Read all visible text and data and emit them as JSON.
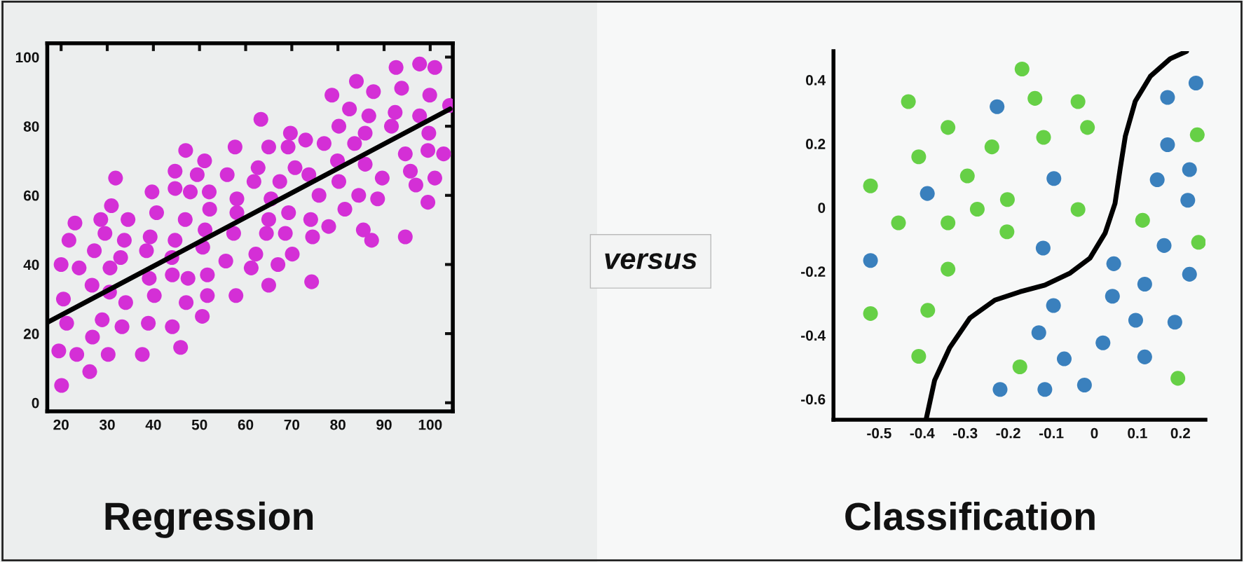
{
  "chart_data": [
    {
      "type": "scatter",
      "title": "Regression",
      "marker": "circle",
      "annotations": [
        "versus"
      ],
      "xlim": [
        17,
        104.9
      ],
      "ylim": [
        -2.5,
        104
      ],
      "xticks": [
        20,
        30,
        40,
        50,
        60,
        70,
        80,
        90,
        100
      ],
      "yticks": [
        0,
        20,
        40,
        60,
        80,
        100
      ],
      "series": [
        {
          "color": "#d42fd6",
          "x": [
            20.0,
            20.5,
            19.5,
            20.1,
            21.2,
            21.7,
            23.0,
            23.9,
            23.4,
            26.7,
            27.2,
            26.8,
            26.2,
            28.6,
            29.5,
            28.9,
            30.2,
            30.6,
            30.5,
            30.9,
            31.8,
            32.9,
            33.7,
            34.5,
            34.0,
            33.2,
            37.6,
            38.5,
            39.3,
            39.1,
            39.7,
            40.7,
            40.2,
            38.9,
            44.7,
            44.7,
            44.7,
            44.0,
            44.1,
            44.1,
            45.9,
            47.0,
            46.9,
            48.0,
            47.5,
            47.1,
            49.5,
            51.1,
            52.1,
            52.2,
            51.2,
            50.7,
            51.7,
            51.7,
            50.6,
            56.0,
            57.7,
            58.1,
            58.1,
            57.4,
            55.7,
            57.9,
            63.3,
            62.7,
            61.8,
            65.0,
            69.2,
            69.7,
            73.0,
            77.0,
            67.4,
            70.7,
            73.7,
            65.5,
            65.0,
            64.5,
            62.2,
            61.2,
            65.0,
            67.0,
            68.6,
            69.3,
            70.1,
            74.1,
            74.5,
            74.3,
            75.9,
            78.0,
            78.7,
            80.2,
            79.9,
            80.2,
            81.5,
            82.5,
            84.0,
            83.6,
            85.9,
            86.7,
            85.9,
            84.5,
            85.5,
            87.3,
            87.7,
            88.6,
            89.6,
            91.6,
            92.4,
            92.6,
            93.8,
            94.6,
            95.7,
            96.9,
            94.6,
            97.7,
            101.0,
            99.9,
            97.7,
            99.7,
            99.5,
            101.0,
            102.9,
            99.5,
            104.2
          ],
          "values": [
            40,
            30,
            15,
            5,
            23,
            47,
            52,
            39,
            14,
            34,
            44,
            19,
            9,
            53,
            49,
            24,
            14,
            39,
            32,
            57,
            65,
            42,
            47,
            53,
            29,
            22,
            14,
            44,
            48,
            36,
            61,
            55,
            31,
            23,
            67,
            62,
            47,
            42,
            37,
            22,
            16,
            73,
            53,
            61,
            36,
            29,
            66,
            70,
            61,
            56,
            50,
            45,
            37,
            31,
            25,
            66,
            74,
            59,
            55,
            49,
            41,
            31,
            82,
            68,
            64,
            74,
            74,
            78,
            76,
            75,
            64,
            68,
            66,
            59,
            53,
            49,
            43,
            39,
            34,
            40,
            49,
            55,
            43,
            53,
            48,
            35,
            60,
            51,
            89,
            80,
            70,
            64,
            56,
            85,
            93,
            75,
            78,
            83,
            69,
            60,
            50,
            47,
            90,
            59,
            65,
            80,
            84,
            97,
            91,
            72,
            67,
            63,
            48,
            98,
            97,
            89,
            83,
            78,
            73,
            65,
            72,
            58,
            86
          ]
        },
        {
          "type": "line",
          "marker": "none",
          "color": "#000000",
          "x": [
            17,
            104.3
          ],
          "values": [
            23.2,
            85
          ]
        }
      ]
    },
    {
      "type": "scatter",
      "title": "Classification",
      "marker": "circle",
      "xlim": [
        -0.606,
        0.258
      ],
      "ylim": [
        -0.665,
        0.49
      ],
      "xticks": [
        -0.5,
        -0.4,
        -0.3,
        -0.2,
        -0.1,
        0,
        0.1,
        0.2
      ],
      "yticks": [
        -0.6,
        -0.4,
        -0.2,
        0,
        0.2,
        0.4
      ],
      "series": [
        {
          "color": "#66d046",
          "x": [
            -0.432,
            -0.34,
            -0.238,
            -0.408,
            -0.295,
            -0.52,
            -0.202,
            -0.272,
            -0.455,
            -0.34,
            -0.34,
            -0.52,
            -0.387,
            -0.408,
            -0.168,
            -0.138,
            -0.038,
            -0.016,
            -0.118,
            -0.038,
            0.112,
            -0.203,
            0.242,
            0.239,
            -0.173,
            0.194
          ],
          "values": [
            0.332,
            0.251,
            0.19,
            0.159,
            0.099,
            0.068,
            0.025,
            -0.005,
            -0.048,
            -0.048,
            -0.193,
            -0.332,
            -0.322,
            -0.466,
            0.434,
            0.342,
            0.332,
            0.251,
            0.22,
            -0.006,
            -0.04,
            -0.076,
            -0.109,
            0.228,
            -0.499,
            -0.535
          ]
        },
        {
          "color": "#3a80bd",
          "x": [
            -0.226,
            -0.388,
            -0.52,
            0.17,
            0.236,
            0.17,
            0.221,
            0.146,
            0.217,
            -0.094,
            -0.119,
            0.162,
            0.221,
            0.045,
            0.117,
            0.042,
            -0.095,
            0.096,
            0.187,
            -0.129,
            0.02,
            0.117,
            -0.07,
            -0.219,
            -0.115,
            -0.023
          ],
          "values": [
            0.316,
            0.044,
            -0.166,
            0.345,
            0.39,
            0.197,
            0.119,
            0.087,
            0.023,
            0.091,
            -0.127,
            -0.119,
            -0.209,
            -0.176,
            -0.24,
            -0.278,
            -0.307,
            -0.353,
            -0.359,
            -0.392,
            -0.424,
            -0.468,
            -0.474,
            -0.57,
            -0.57,
            -0.556
          ]
        },
        {
          "type": "line",
          "marker": "none",
          "color": "#000000",
          "x": [
            -0.391,
            -0.371,
            -0.336,
            -0.289,
            -0.231,
            -0.173,
            -0.115,
            -0.056,
            -0.01,
            0.025,
            0.048,
            0.06,
            0.072,
            0.095,
            0.13,
            0.176,
            0.214
          ],
          "values": [
            -0.665,
            -0.541,
            -0.439,
            -0.346,
            -0.29,
            -0.264,
            -0.243,
            -0.205,
            -0.158,
            -0.08,
            0.013,
            0.122,
            0.224,
            0.333,
            0.411,
            0.466,
            0.489
          ]
        }
      ]
    }
  ]
}
